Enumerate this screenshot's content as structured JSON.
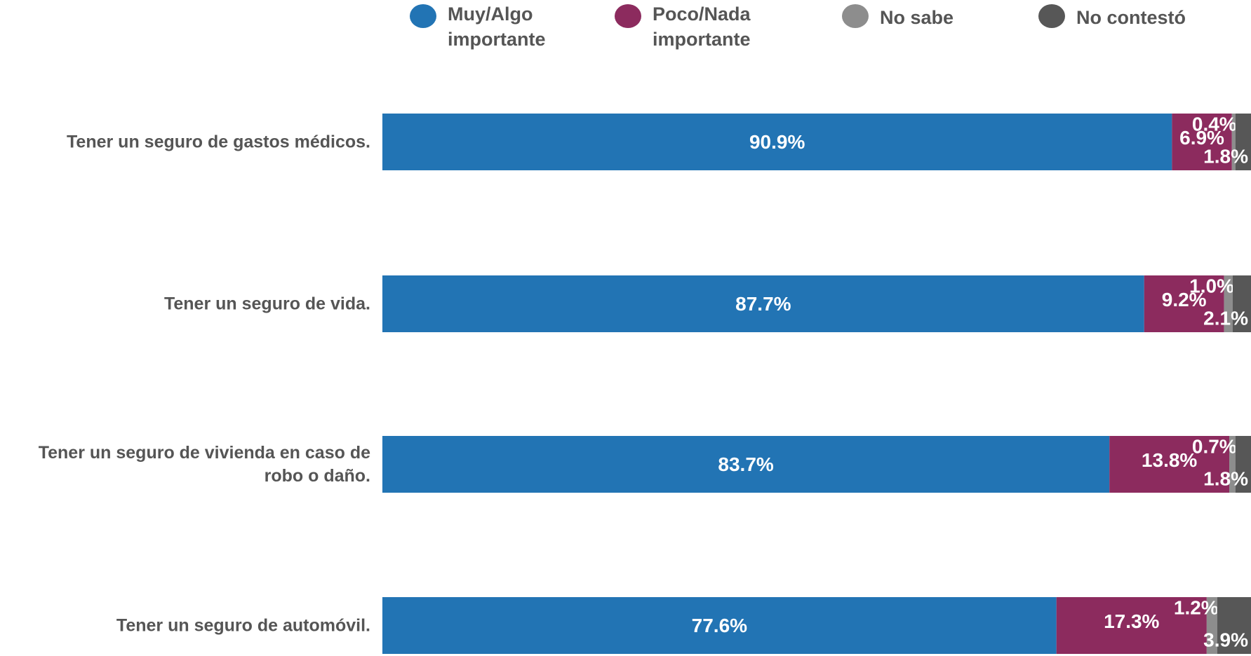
{
  "chart_data": {
    "type": "stacked-bar-horizontal",
    "categories": [
      "Tener un seguro de gastos médicos.",
      "Tener un seguro de vida.",
      "Tener un seguro de vivienda en caso de robo o daño.",
      "Tener un seguro de automóvil."
    ],
    "xlim": [
      0,
      100
    ],
    "series": [
      {
        "name": "Muy/Algo importante",
        "color": "#2274b4",
        "values": [
          90.9,
          87.7,
          83.7,
          77.6
        ],
        "value_labels": [
          "90.9%",
          "87.7%",
          "83.7%",
          "77.6%"
        ]
      },
      {
        "name": "Poco/Nada importante",
        "color": "#8c2b5e",
        "values": [
          6.9,
          9.2,
          13.8,
          17.3
        ],
        "value_labels": [
          "6.9%",
          "9.2%",
          "13.8%",
          "17.3%"
        ]
      },
      {
        "name": "No sabe",
        "color": "#8d8d8d",
        "values": [
          0.4,
          1.0,
          0.7,
          1.2
        ],
        "value_labels": [
          "0.4%",
          "1.0%",
          "0.7%",
          "1.2%"
        ]
      },
      {
        "name": "No contestó",
        "color": "#575757",
        "values": [
          1.8,
          2.1,
          1.8,
          3.9
        ],
        "value_labels": [
          "1.8%",
          "2.1%",
          "1.8%",
          "3.9%"
        ]
      }
    ]
  }
}
